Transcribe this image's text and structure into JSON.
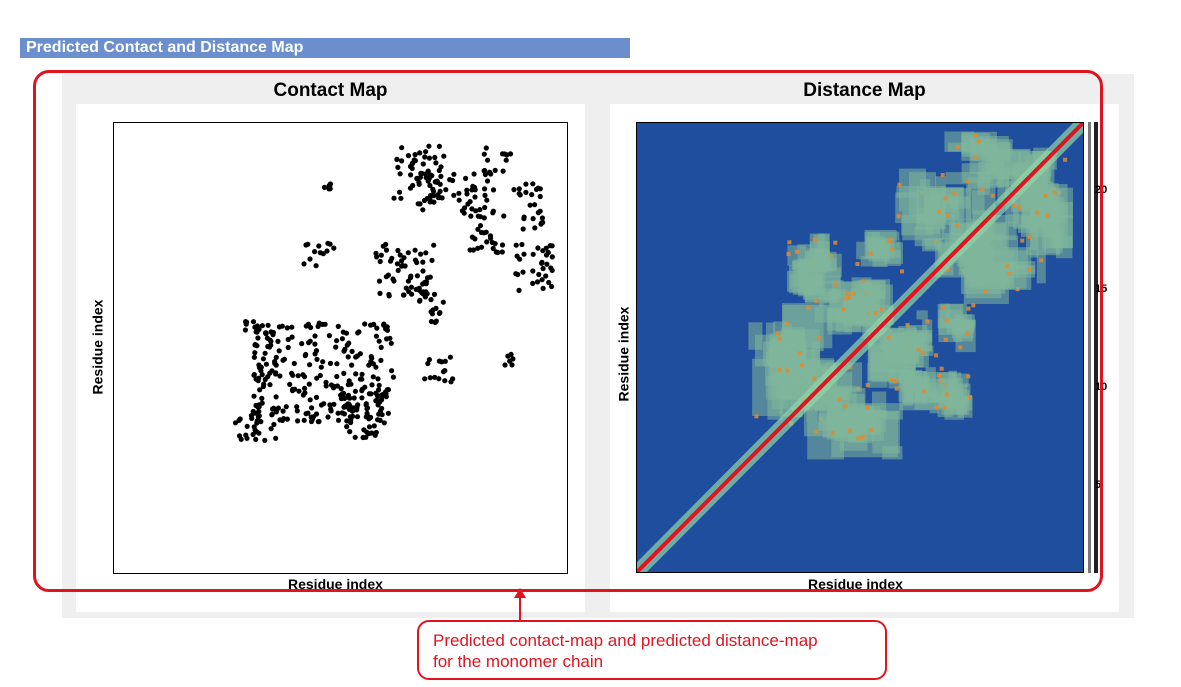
{
  "section": {
    "title": "Predicted Contact and Distance Map"
  },
  "contact_map": {
    "title": "Contact Map",
    "xlabel": "Residue index",
    "ylabel": "Residue index"
  },
  "distance_map": {
    "title": "Distance Map",
    "xlabel": "Residue index",
    "ylabel": "Residue index",
    "colorbar_ticks": [
      "20",
      "15",
      "10",
      "5"
    ]
  },
  "callout": {
    "line1": "Predicted contact-map and predicted distance-map",
    "line2": "for the monomer chain"
  },
  "colors": {
    "header_bg": "#6b8fce",
    "highlight": "#e0141e",
    "distance_bg": "#1f4e9e"
  }
}
